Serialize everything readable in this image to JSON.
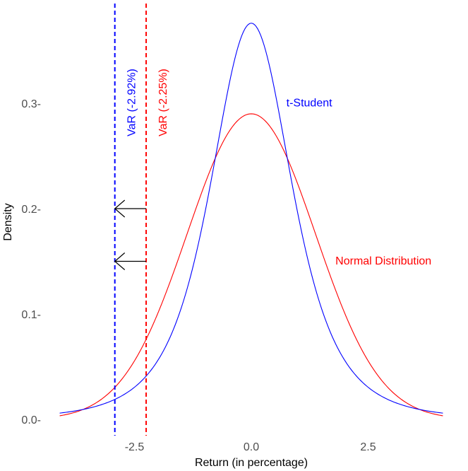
{
  "chart_data": {
    "type": "line",
    "xlabel": "Return (in percentage)",
    "ylabel": "Density",
    "xlim": [
      -4.2,
      4.2
    ],
    "ylim": [
      0,
      0.375
    ],
    "x_ticks": [
      -2.5,
      0.0,
      2.5
    ],
    "x_tick_labels": [
      "-2.5",
      "0.0",
      "2.5"
    ],
    "y_ticks": [
      0.0,
      0.1,
      0.2,
      0.3
    ],
    "y_tick_labels": [
      "0.0-",
      "0.1-",
      "0.2-",
      "0.3-"
    ],
    "grid": false,
    "series": [
      {
        "name": "Normal Distribution",
        "color": "#ff0000",
        "x": [
          -4.1,
          -3.5,
          -3.0,
          -2.5,
          -2.0,
          -1.5,
          -1.0,
          -0.5,
          0.0,
          0.5,
          1.0,
          1.5,
          2.0,
          2.5,
          3.0,
          3.5,
          4.1
        ],
        "y": [
          0.003,
          0.012,
          0.028,
          0.056,
          0.097,
          0.148,
          0.2,
          0.256,
          0.29,
          0.256,
          0.2,
          0.148,
          0.097,
          0.056,
          0.028,
          0.012,
          0.003
        ]
      },
      {
        "name": "t-Student",
        "color": "#0000ff",
        "x": [
          -4.1,
          -3.5,
          -3.0,
          -2.5,
          -2.0,
          -1.5,
          -1.0,
          -0.5,
          0.0,
          0.5,
          1.0,
          1.5,
          2.0,
          2.5,
          3.0,
          3.5,
          4.1
        ],
        "y": [
          0.006,
          0.012,
          0.024,
          0.045,
          0.08,
          0.138,
          0.222,
          0.318,
          0.376,
          0.318,
          0.222,
          0.138,
          0.08,
          0.045,
          0.024,
          0.012,
          0.006
        ]
      }
    ],
    "vlines": [
      {
        "x": -2.92,
        "color": "#0000ff",
        "style": "dashed",
        "label": "VaR (-2.92%)"
      },
      {
        "x": -2.25,
        "color": "#ff0000",
        "style": "dashed",
        "label": "VaR (-2.25%)"
      }
    ],
    "arrows": [
      {
        "from_x": -2.25,
        "to_x": -2.92,
        "y": 0.2,
        "color": "#000000"
      },
      {
        "from_x": -2.25,
        "to_x": -2.92,
        "y": 0.15,
        "color": "#000000"
      }
    ],
    "annotations": [
      {
        "text": "t-Student",
        "x": 0.75,
        "y": 0.301,
        "color": "#0000ff"
      },
      {
        "text": "Normal Distribution",
        "x": 1.8,
        "y": 0.151,
        "color": "#ff0000"
      }
    ]
  }
}
